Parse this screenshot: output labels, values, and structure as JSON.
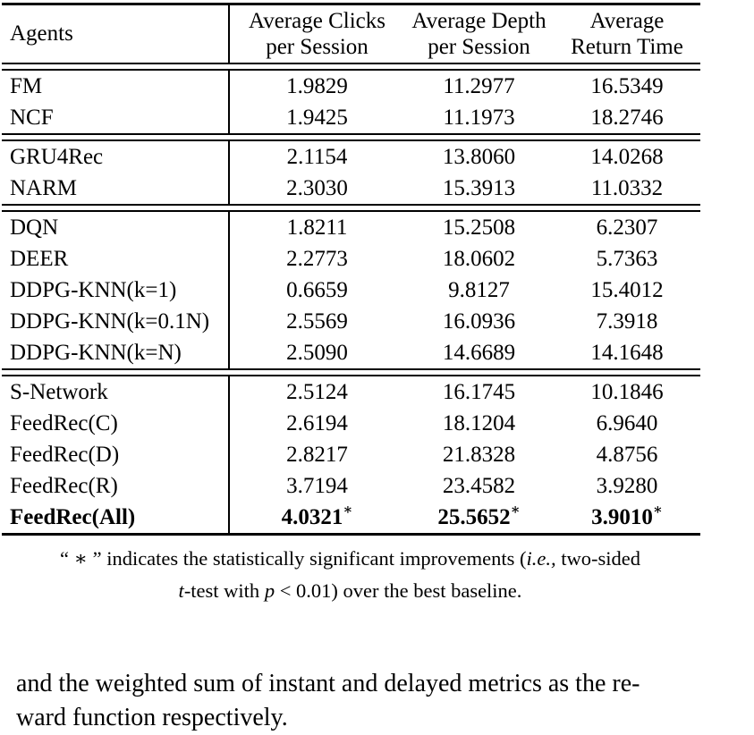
{
  "table": {
    "star": "∗",
    "columns": [
      {
        "label": "Agents"
      },
      {
        "line1": "Average Clicks",
        "line2": "per Session"
      },
      {
        "line1": "Average Depth",
        "line2": "per Session"
      },
      {
        "line1": "Average",
        "line2": "Return Time"
      }
    ],
    "groups": [
      {
        "rows": [
          {
            "agent": "FM",
            "clicks": "1.9829",
            "depth": "11.2977",
            "return_time": "16.5349"
          },
          {
            "agent": "NCF",
            "clicks": "1.9425",
            "depth": "11.1973",
            "return_time": "18.2746"
          }
        ]
      },
      {
        "rows": [
          {
            "agent": "GRU4Rec",
            "clicks": "2.1154",
            "depth": "13.8060",
            "return_time": "14.0268"
          },
          {
            "agent": "NARM",
            "clicks": "2.3030",
            "depth": "15.3913",
            "return_time": "11.0332"
          }
        ]
      },
      {
        "rows": [
          {
            "agent": "DQN",
            "clicks": "1.8211",
            "depth": "15.2508",
            "return_time": "6.2307"
          },
          {
            "agent": "DEER",
            "clicks": "2.2773",
            "depth": "18.0602",
            "return_time": "5.7363"
          },
          {
            "agent": "DDPG-KNN(k=1)",
            "clicks": "0.6659",
            "depth": "9.8127",
            "return_time": "15.4012"
          },
          {
            "agent": "DDPG-KNN(k=0.1N)",
            "clicks": "2.5569",
            "depth": "16.0936",
            "return_time": "7.3918"
          },
          {
            "agent": "DDPG-KNN(k=N)",
            "clicks": "2.5090",
            "depth": "14.6689",
            "return_time": "14.1648"
          }
        ]
      },
      {
        "rows": [
          {
            "agent": "S-Network",
            "clicks": "2.5124",
            "depth": "16.1745",
            "return_time": "10.1846"
          },
          {
            "agent": "FeedRec(C)",
            "clicks": "2.6194",
            "depth": "18.1204",
            "return_time": "6.9640"
          },
          {
            "agent": "FeedRec(D)",
            "clicks": "2.8217",
            "depth": "21.8328",
            "return_time": "4.8756"
          },
          {
            "agent": "FeedRec(R)",
            "clicks": "3.7194",
            "depth": "23.4582",
            "return_time": "3.9280"
          },
          {
            "agent": "FeedRec(All)",
            "clicks": "4.0321",
            "depth": "25.5652",
            "return_time": "3.9010",
            "bold": true,
            "starred": true
          }
        ]
      }
    ]
  },
  "footnote": {
    "l1_a": "“ ∗ ” indicates the statistically significant improvements (",
    "l1_italic": "i.e.,",
    "l1_b": " two-sided",
    "l2_italic1": "t",
    "l2_a": "-test with ",
    "l2_italic2": "p",
    "l2_b": " < 0.01) over the best baseline."
  },
  "body_text": {
    "line1": "and the weighted sum of instant and delayed metrics as the re-",
    "line2": "ward function respectively."
  }
}
